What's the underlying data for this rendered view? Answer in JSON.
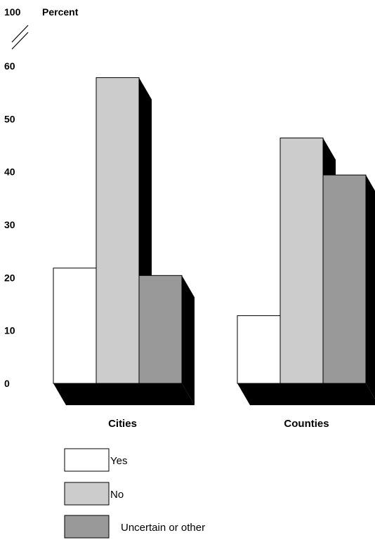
{
  "chart_data": {
    "type": "bar",
    "ylabel": "Percent",
    "y_ticks": [
      "0",
      "10",
      "20",
      "30",
      "40",
      "50",
      "60"
    ],
    "y_top_label": "100",
    "axis_break": true,
    "ylim": [
      0,
      60
    ],
    "categories": [
      "Cities",
      "Counties"
    ],
    "series": [
      {
        "name": "Yes",
        "values": [
          21.8,
          12.8
        ],
        "color": "#ffffff"
      },
      {
        "name": "No",
        "values": [
          57.8,
          46.4
        ],
        "color": "#cccccc"
      },
      {
        "name": "Uncertain or other",
        "values": [
          20.4,
          39.4
        ],
        "color": "#999999"
      }
    ],
    "shadow_color": "#000000",
    "legend_position": "bottom-left",
    "grid": false
  }
}
